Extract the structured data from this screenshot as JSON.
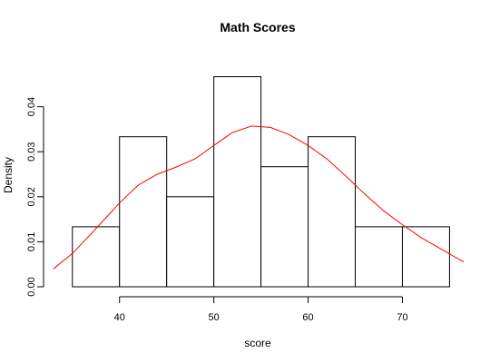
{
  "chart_data": {
    "type": "bar",
    "title": "Math Scores",
    "xlabel": "score",
    "ylabel": "Density",
    "x_range": [
      33,
      76.5
    ],
    "ylim": [
      0,
      0.05
    ],
    "x_ticks": [
      40,
      50,
      60,
      70
    ],
    "y_ticks": [
      "0.00",
      "0.01",
      "0.02",
      "0.03",
      "0.04"
    ],
    "bins": [
      {
        "from": 35,
        "to": 40,
        "density": 0.01333
      },
      {
        "from": 40,
        "to": 45,
        "density": 0.03333
      },
      {
        "from": 45,
        "to": 50,
        "density": 0.02
      },
      {
        "from": 50,
        "to": 55,
        "density": 0.04667
      },
      {
        "from": 55,
        "to": 60,
        "density": 0.02667
      },
      {
        "from": 60,
        "to": 65,
        "density": 0.03333
      },
      {
        "from": 65,
        "to": 70,
        "density": 0.01333
      },
      {
        "from": 70,
        "to": 75,
        "density": 0.01333
      }
    ],
    "density_curve": {
      "color": "#ff0000",
      "x": [
        33,
        35,
        37,
        40,
        42,
        44,
        46,
        48,
        50,
        52,
        54,
        56,
        58,
        60,
        62,
        64,
        66,
        68,
        70,
        72,
        74,
        76.5
      ],
      "y": [
        0.004,
        0.0074,
        0.0118,
        0.0186,
        0.0226,
        0.025,
        0.0266,
        0.0284,
        0.0314,
        0.0343,
        0.0357,
        0.0354,
        0.0338,
        0.0314,
        0.0284,
        0.0246,
        0.0206,
        0.0169,
        0.0138,
        0.0109,
        0.0085,
        0.0055
      ]
    },
    "bar_fill": "#ffffff",
    "bar_stroke": "#000000",
    "grid": false,
    "legend": "none"
  }
}
